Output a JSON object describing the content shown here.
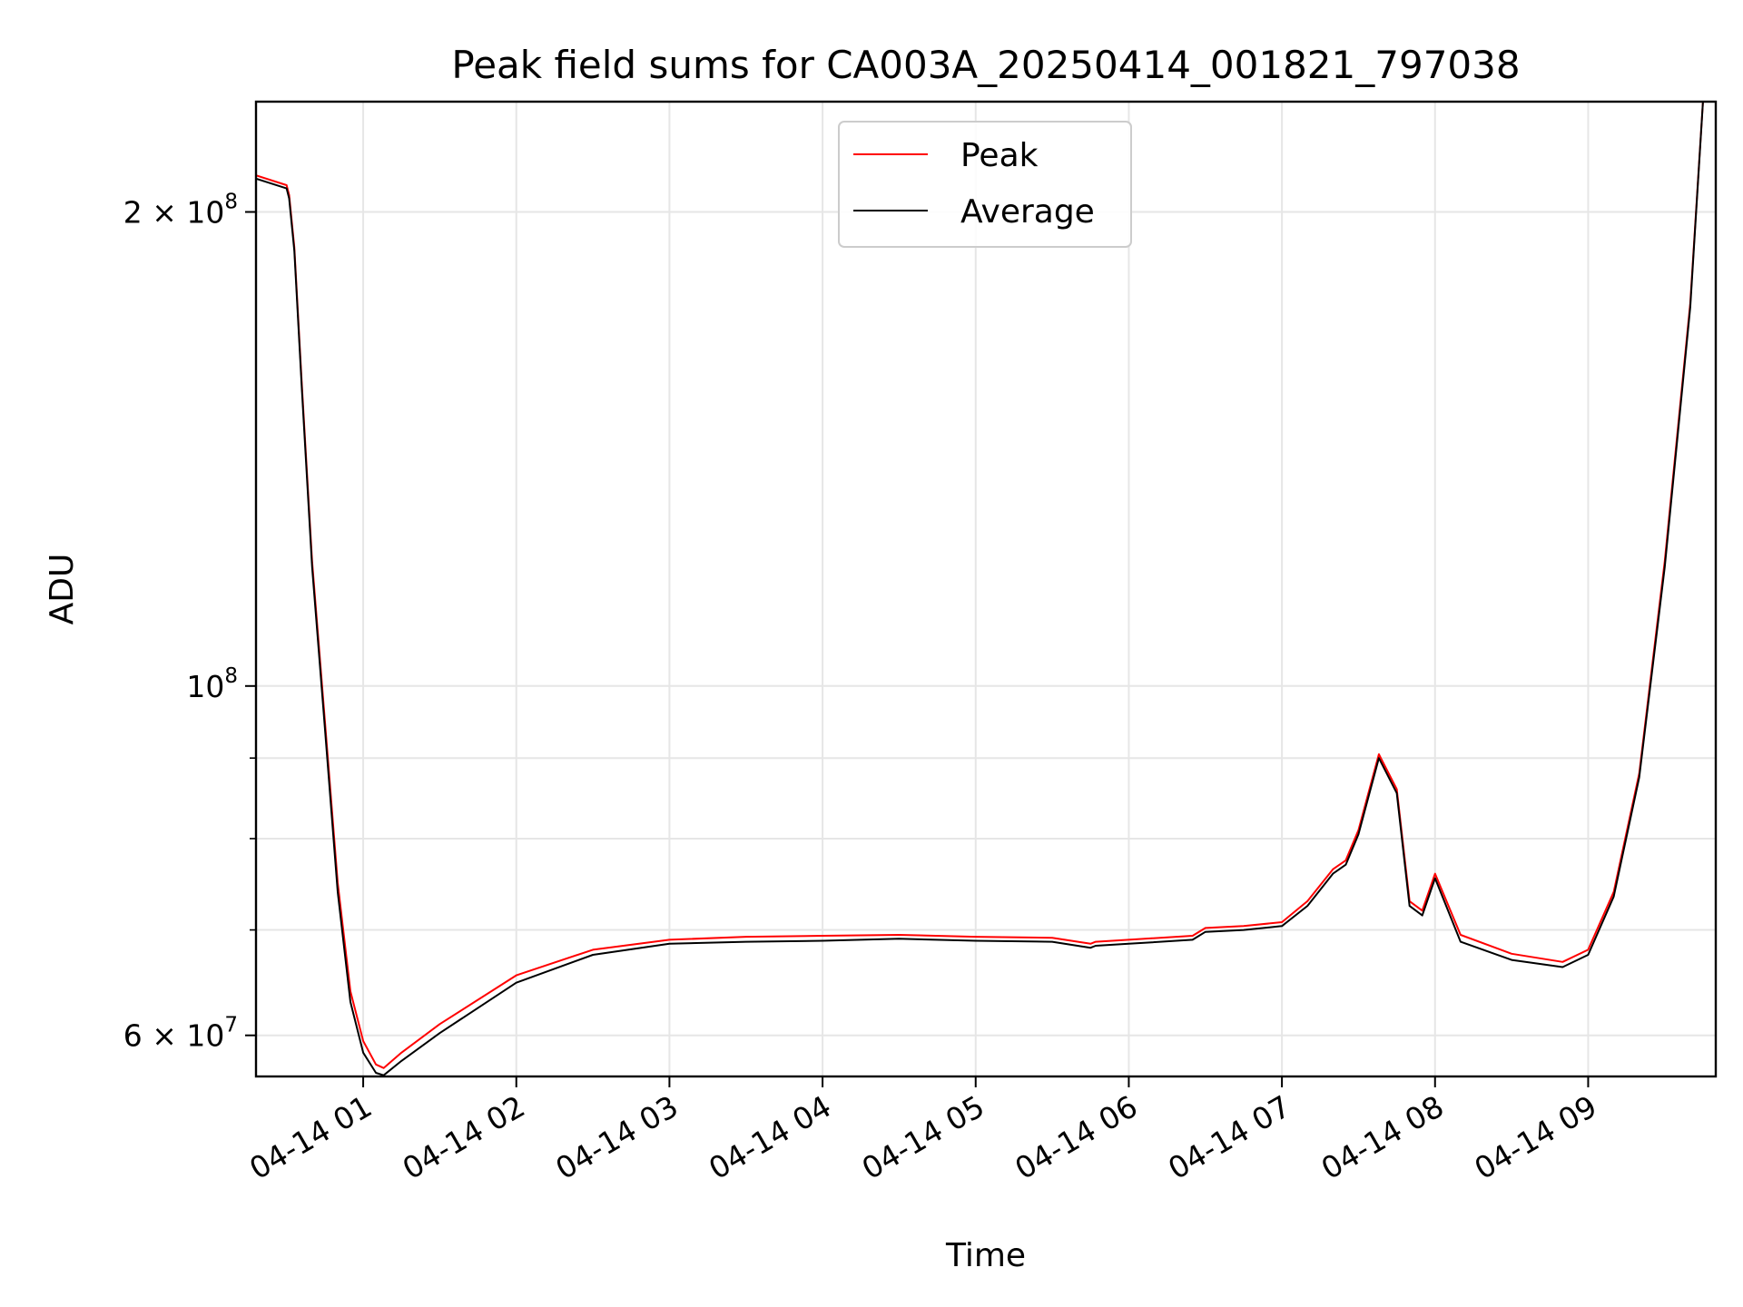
{
  "chart_data": {
    "type": "line",
    "title": "Peak field sums for CA003A_20250414_001821_797038",
    "xlabel": "Time",
    "ylabel": "ADU",
    "yscale": "log",
    "grid": true,
    "legend_position": "top-center",
    "x_range": [
      "2025-04-14 00:18",
      "2025-04-14 09:50"
    ],
    "y_range": [
      56500000,
      235000000
    ],
    "x_ticks": [
      {
        "value": "2025-04-14 01:00",
        "label": "04-14 01"
      },
      {
        "value": "2025-04-14 02:00",
        "label": "04-14 02"
      },
      {
        "value": "2025-04-14 03:00",
        "label": "04-14 03"
      },
      {
        "value": "2025-04-14 04:00",
        "label": "04-14 04"
      },
      {
        "value": "2025-04-14 05:00",
        "label": "04-14 05"
      },
      {
        "value": "2025-04-14 06:00",
        "label": "04-14 06"
      },
      {
        "value": "2025-04-14 07:00",
        "label": "04-14 07"
      },
      {
        "value": "2025-04-14 08:00",
        "label": "04-14 08"
      },
      {
        "value": "2025-04-14 09:00",
        "label": "04-14 09"
      }
    ],
    "y_major_ticks": [
      {
        "value": 60000000,
        "base": "6 × 10",
        "exp": "7"
      },
      {
        "value": 100000000,
        "base": "10",
        "exp": "8"
      },
      {
        "value": 200000000,
        "base": "2 × 10",
        "exp": "8"
      }
    ],
    "y_minor_gridlines": [
      70000000,
      80000000,
      90000000
    ],
    "series": [
      {
        "name": "Peak",
        "color": "#ff0000",
        "x": [
          "2025-04-14 00:18",
          "2025-04-14 00:30",
          "2025-04-14 00:31",
          "2025-04-14 00:33",
          "2025-04-14 00:36",
          "2025-04-14 00:40",
          "2025-04-14 00:45",
          "2025-04-14 00:50",
          "2025-04-14 00:55",
          "2025-04-14 01:00",
          "2025-04-14 01:05",
          "2025-04-14 01:08",
          "2025-04-14 01:15",
          "2025-04-14 01:30",
          "2025-04-14 02:00",
          "2025-04-14 02:30",
          "2025-04-14 03:00",
          "2025-04-14 03:30",
          "2025-04-14 04:00",
          "2025-04-14 04:30",
          "2025-04-14 05:00",
          "2025-04-14 05:30",
          "2025-04-14 05:45",
          "2025-04-14 05:47",
          "2025-04-14 06:00",
          "2025-04-14 06:25",
          "2025-04-14 06:30",
          "2025-04-14 06:45",
          "2025-04-14 07:00",
          "2025-04-14 07:10",
          "2025-04-14 07:20",
          "2025-04-14 07:25",
          "2025-04-14 07:30",
          "2025-04-14 07:38",
          "2025-04-14 07:45",
          "2025-04-14 07:50",
          "2025-04-14 07:55",
          "2025-04-14 08:00",
          "2025-04-14 08:10",
          "2025-04-14 08:30",
          "2025-04-14 08:50",
          "2025-04-14 09:00",
          "2025-04-14 09:10",
          "2025-04-14 09:20",
          "2025-04-14 09:30",
          "2025-04-14 09:40",
          "2025-04-14 09:45"
        ],
        "y": [
          211000000,
          208000000,
          205000000,
          190000000,
          155000000,
          120000000,
          95000000,
          75000000,
          64000000,
          59500000,
          57500000,
          57200000,
          58500000,
          61000000,
          65500000,
          68000000,
          69000000,
          69300000,
          69400000,
          69500000,
          69300000,
          69200000,
          68600000,
          68800000,
          69000000,
          69400000,
          70200000,
          70400000,
          70800000,
          73000000,
          76500000,
          77500000,
          81000000,
          90500000,
          86000000,
          73000000,
          72000000,
          76000000,
          69500000,
          67600000,
          66800000,
          68000000,
          74000000,
          88000000,
          120000000,
          175000000,
          235000000
        ]
      },
      {
        "name": "Average",
        "color": "#000000",
        "x": [
          "2025-04-14 00:18",
          "2025-04-14 00:30",
          "2025-04-14 00:31",
          "2025-04-14 00:33",
          "2025-04-14 00:36",
          "2025-04-14 00:40",
          "2025-04-14 00:45",
          "2025-04-14 00:50",
          "2025-04-14 00:55",
          "2025-04-14 01:00",
          "2025-04-14 01:05",
          "2025-04-14 01:08",
          "2025-04-14 01:15",
          "2025-04-14 01:30",
          "2025-04-14 02:00",
          "2025-04-14 02:30",
          "2025-04-14 03:00",
          "2025-04-14 03:30",
          "2025-04-14 04:00",
          "2025-04-14 04:30",
          "2025-04-14 05:00",
          "2025-04-14 05:30",
          "2025-04-14 05:45",
          "2025-04-14 05:47",
          "2025-04-14 06:00",
          "2025-04-14 06:25",
          "2025-04-14 06:30",
          "2025-04-14 06:45",
          "2025-04-14 07:00",
          "2025-04-14 07:10",
          "2025-04-14 07:20",
          "2025-04-14 07:25",
          "2025-04-14 07:30",
          "2025-04-14 07:38",
          "2025-04-14 07:45",
          "2025-04-14 07:50",
          "2025-04-14 07:55",
          "2025-04-14 08:00",
          "2025-04-14 08:10",
          "2025-04-14 08:30",
          "2025-04-14 08:50",
          "2025-04-14 09:00",
          "2025-04-14 09:10",
          "2025-04-14 09:20",
          "2025-04-14 09:30",
          "2025-04-14 09:40",
          "2025-04-14 09:45"
        ],
        "y": [
          210000000,
          207000000,
          204000000,
          189000000,
          154000000,
          119000000,
          94000000,
          74000000,
          63000000,
          58500000,
          56800000,
          56600000,
          57800000,
          60200000,
          64800000,
          67500000,
          68600000,
          68800000,
          68900000,
          69100000,
          68900000,
          68800000,
          68200000,
          68400000,
          68600000,
          69000000,
          69800000,
          70000000,
          70400000,
          72500000,
          76000000,
          77000000,
          80500000,
          90000000,
          85500000,
          72500000,
          71500000,
          75500000,
          68800000,
          67000000,
          66300000,
          67500000,
          73500000,
          87500000,
          119000000,
          174000000,
          235000000
        ]
      }
    ]
  }
}
